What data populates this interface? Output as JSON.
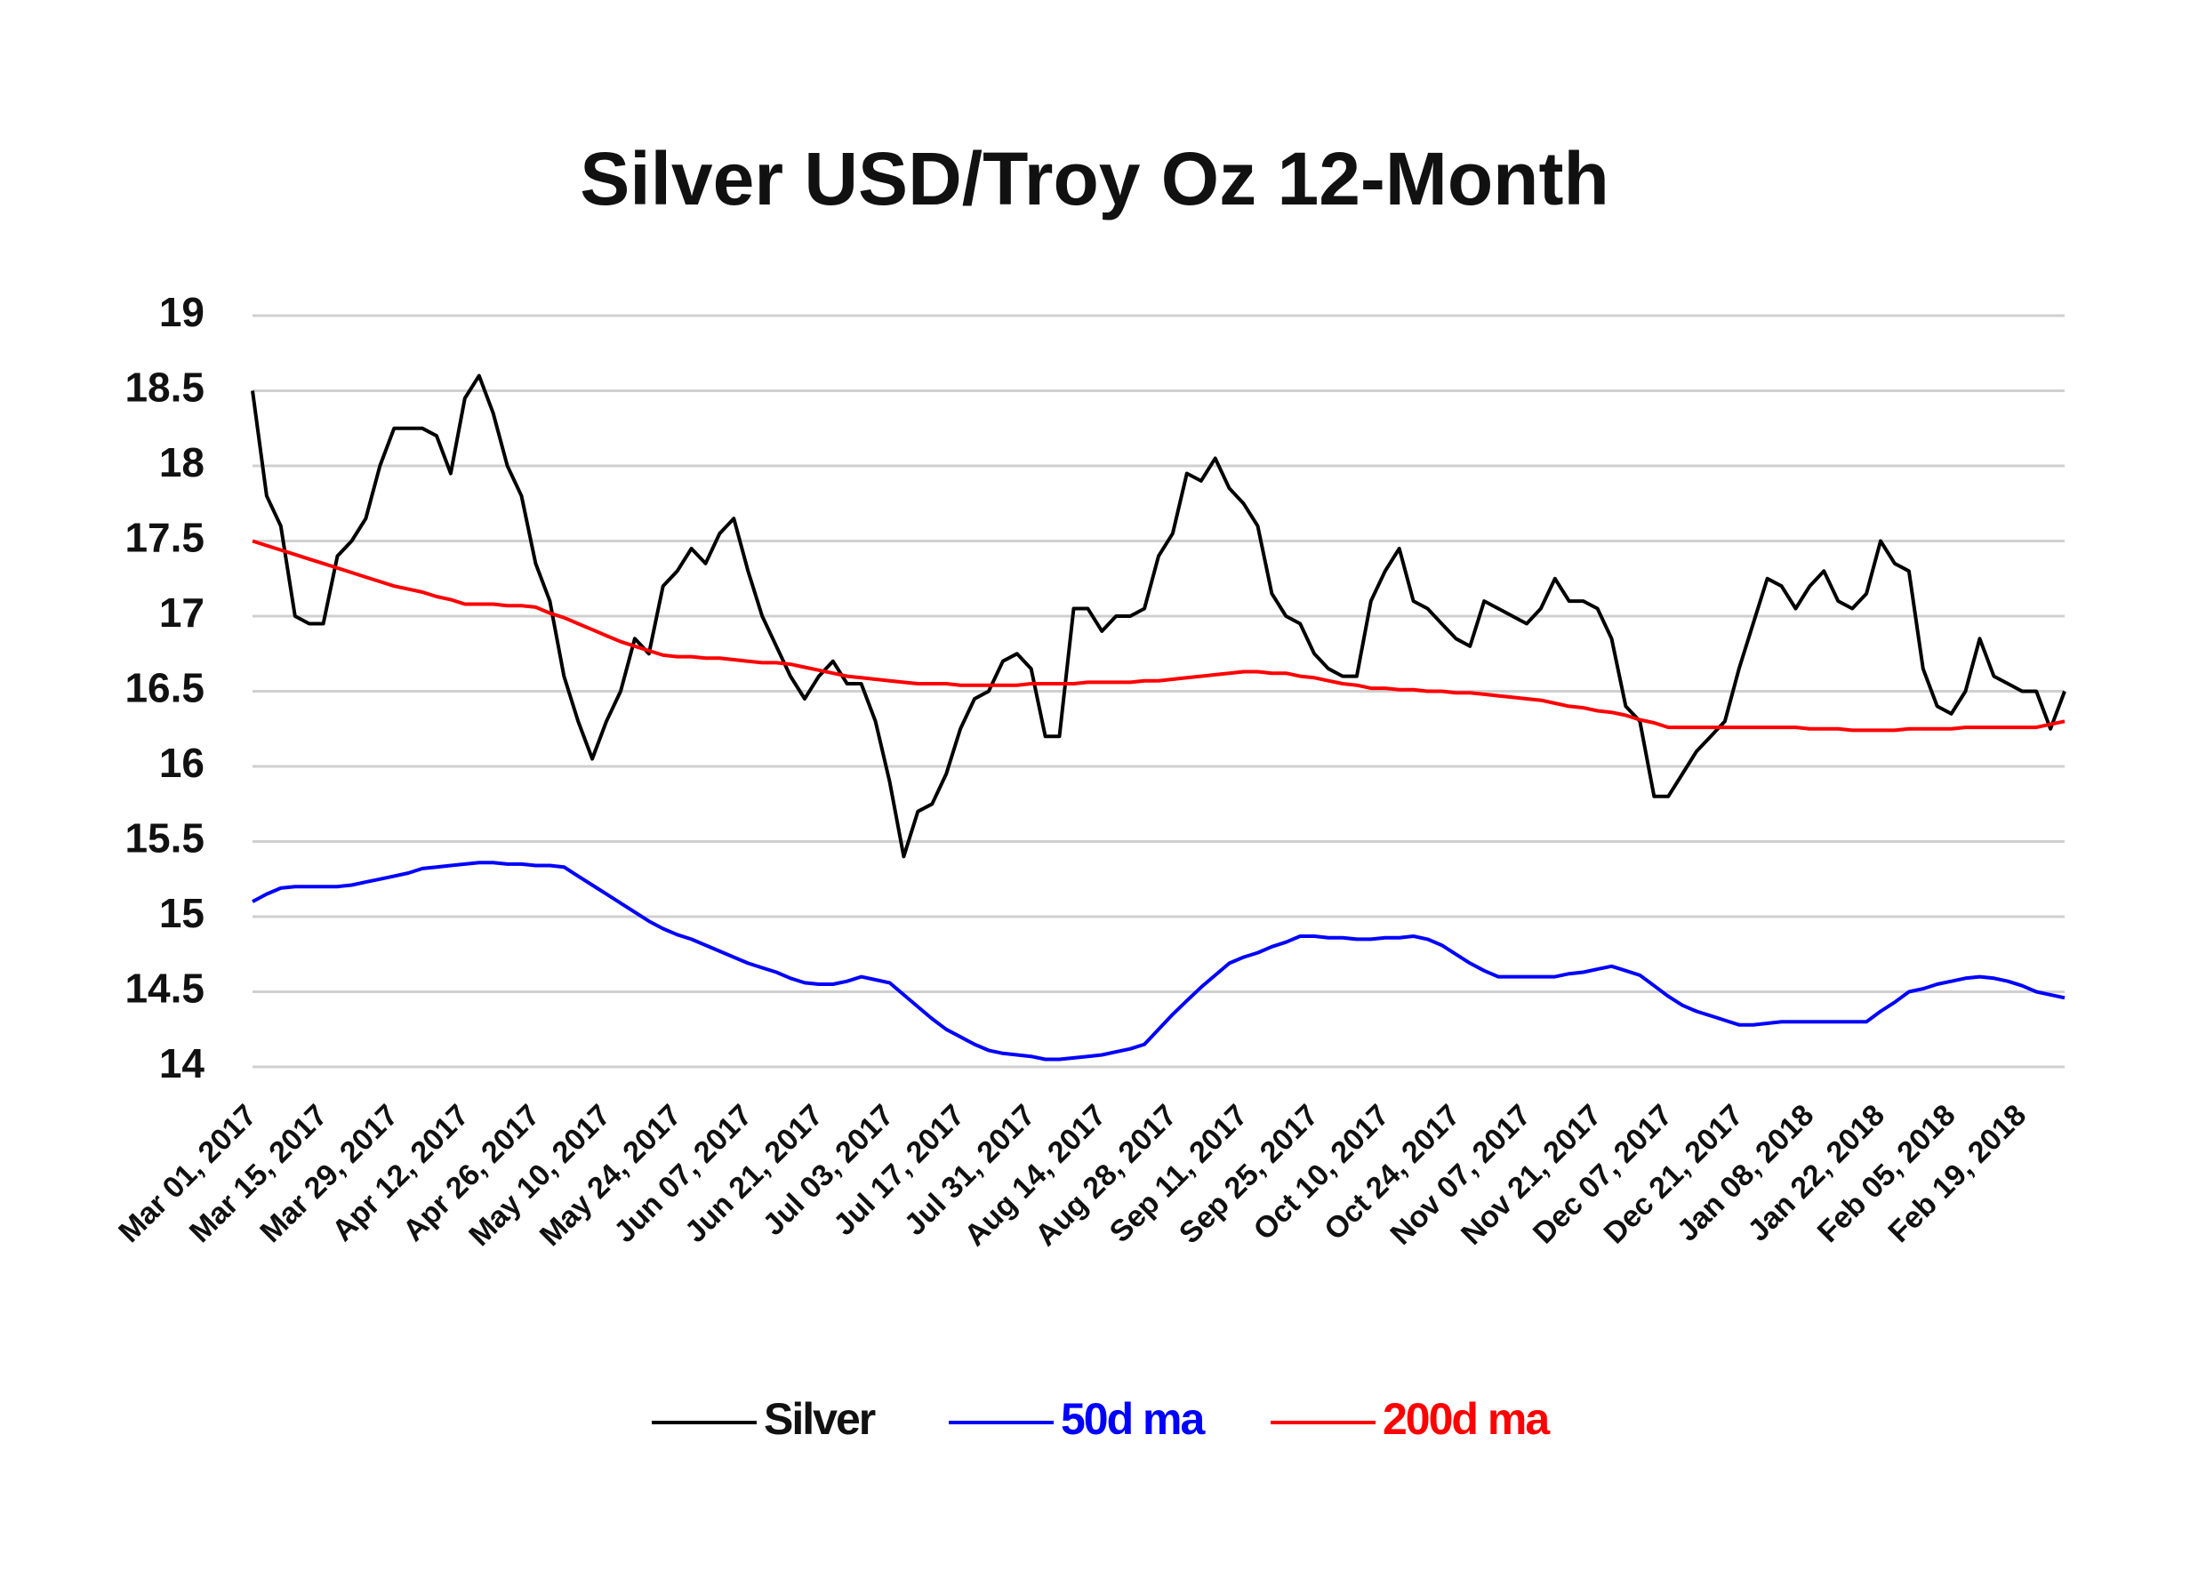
{
  "chart_data": {
    "type": "line",
    "title": "Silver USD/Troy Oz 12-Month",
    "categories": [
      "Mar 01, 2017",
      null,
      null,
      null,
      null,
      "Mar 15, 2017",
      null,
      null,
      null,
      null,
      "Mar 29, 2017",
      null,
      null,
      null,
      null,
      "Apr 12, 2017",
      null,
      null,
      null,
      null,
      "Apr 26, 2017",
      null,
      null,
      null,
      null,
      "May 10, 2017",
      null,
      null,
      null,
      null,
      "May 24, 2017",
      null,
      null,
      null,
      null,
      "Jun 07, 2017",
      null,
      null,
      null,
      null,
      "Jun 21, 2017",
      null,
      null,
      null,
      null,
      "Jul 03, 2017",
      null,
      null,
      null,
      null,
      "Jul 17, 2017",
      null,
      null,
      null,
      null,
      "Jul 31, 2017",
      null,
      null,
      null,
      null,
      "Aug 14, 2017",
      null,
      null,
      null,
      null,
      "Aug 28, 2017",
      null,
      null,
      null,
      null,
      "Sep 11, 2017",
      null,
      null,
      null,
      null,
      "Sep 25, 2017",
      null,
      null,
      null,
      null,
      "Oct 10, 2017",
      null,
      null,
      null,
      null,
      "Oct 24, 2017",
      null,
      null,
      null,
      null,
      "Nov 07, 2017",
      null,
      null,
      null,
      null,
      "Nov 21, 2017",
      null,
      null,
      null,
      null,
      "Dec 07, 2017",
      null,
      null,
      null,
      null,
      "Dec 21, 2017",
      null,
      null,
      null,
      null,
      "Jan 08, 2018",
      null,
      null,
      null,
      null,
      "Jan 22, 2018",
      null,
      null,
      null,
      null,
      "Feb 05, 2018",
      null,
      null,
      null,
      null,
      "Feb 19, 2018",
      null,
      null,
      null
    ],
    "series": [
      {
        "name": "Silver",
        "color": "#000000",
        "values": [
          18.5,
          17.8,
          17.6,
          17.0,
          16.95,
          16.95,
          17.4,
          17.5,
          17.65,
          18.0,
          18.25,
          18.25,
          18.25,
          18.2,
          17.95,
          18.45,
          18.6,
          18.35,
          18.0,
          17.8,
          17.35,
          17.1,
          16.6,
          16.3,
          16.05,
          16.3,
          16.5,
          16.85,
          16.75,
          17.2,
          17.3,
          17.45,
          17.35,
          17.55,
          17.65,
          17.3,
          17.0,
          16.8,
          16.6,
          16.45,
          16.6,
          16.7,
          16.55,
          16.55,
          16.3,
          15.9,
          15.4,
          15.7,
          15.75,
          15.95,
          16.25,
          16.45,
          16.5,
          16.7,
          16.75,
          16.65,
          16.2,
          16.2,
          17.05,
          17.05,
          16.9,
          17.0,
          17.0,
          17.05,
          17.4,
          17.55,
          17.95,
          17.9,
          18.05,
          17.85,
          17.75,
          17.6,
          17.15,
          17.0,
          16.95,
          16.75,
          16.65,
          16.6,
          16.6,
          17.1,
          17.3,
          17.45,
          17.1,
          17.05,
          16.95,
          16.85,
          16.8,
          17.1,
          17.05,
          17.0,
          16.95,
          17.05,
          17.25,
          17.1,
          17.1,
          17.05,
          16.85,
          16.4,
          16.3,
          15.8,
          15.8,
          15.95,
          16.1,
          16.2,
          16.3,
          16.65,
          16.95,
          17.25,
          17.2,
          17.05,
          17.2,
          17.3,
          17.1,
          17.05,
          17.15,
          17.5,
          17.35,
          17.3,
          16.65,
          16.4,
          16.35,
          16.5,
          16.85,
          16.6,
          16.55,
          16.5,
          16.5,
          16.25,
          16.5
        ]
      },
      {
        "name": "50d ma",
        "color": "#0000ff",
        "values": [
          15.1,
          15.15,
          15.19,
          15.2,
          15.2,
          15.2,
          15.2,
          15.21,
          15.23,
          15.25,
          15.27,
          15.29,
          15.32,
          15.33,
          15.34,
          15.35,
          15.36,
          15.36,
          15.35,
          15.35,
          15.34,
          15.34,
          15.33,
          15.27,
          15.21,
          15.15,
          15.09,
          15.03,
          14.97,
          14.92,
          14.88,
          14.85,
          14.81,
          14.77,
          14.73,
          14.69,
          14.66,
          14.63,
          14.59,
          14.56,
          14.55,
          14.55,
          14.57,
          14.6,
          14.58,
          14.56,
          14.48,
          14.4,
          14.32,
          14.25,
          14.2,
          14.15,
          14.11,
          14.09,
          14.08,
          14.07,
          14.05,
          14.05,
          14.06,
          14.07,
          14.08,
          14.1,
          14.12,
          14.15,
          14.25,
          14.35,
          14.44,
          14.53,
          14.61,
          14.69,
          14.73,
          14.76,
          14.8,
          14.83,
          14.87,
          14.87,
          14.86,
          14.86,
          14.85,
          14.85,
          14.86,
          14.86,
          14.87,
          14.85,
          14.81,
          14.75,
          14.69,
          14.64,
          14.6,
          14.6,
          14.6,
          14.6,
          14.6,
          14.62,
          14.63,
          14.65,
          14.67,
          14.64,
          14.61,
          14.54,
          14.47,
          14.41,
          14.37,
          14.34,
          14.31,
          14.28,
          14.28,
          14.29,
          14.3,
          14.3,
          14.3,
          14.3,
          14.3,
          14.3,
          14.3,
          14.37,
          14.43,
          14.5,
          14.52,
          14.55,
          14.57,
          14.59,
          14.6,
          14.59,
          14.57,
          14.54,
          14.5,
          14.48,
          14.46
        ]
      },
      {
        "name": "200d ma",
        "color": "#ff0000",
        "values": [
          17.5,
          17.47,
          17.44,
          17.41,
          17.38,
          17.35,
          17.32,
          17.29,
          17.26,
          17.23,
          17.2,
          17.18,
          17.16,
          17.13,
          17.11,
          17.08,
          17.08,
          17.08,
          17.07,
          17.07,
          17.06,
          17.02,
          16.99,
          16.95,
          16.91,
          16.87,
          16.83,
          16.8,
          16.77,
          16.74,
          16.73,
          16.73,
          16.72,
          16.72,
          16.71,
          16.7,
          16.69,
          16.69,
          16.68,
          16.66,
          16.64,
          16.62,
          16.6,
          16.59,
          16.58,
          16.57,
          16.56,
          16.55,
          16.55,
          16.55,
          16.54,
          16.54,
          16.54,
          16.54,
          16.54,
          16.55,
          16.55,
          16.55,
          16.55,
          16.56,
          16.56,
          16.56,
          16.56,
          16.57,
          16.57,
          16.58,
          16.59,
          16.6,
          16.61,
          16.62,
          16.63,
          16.63,
          16.62,
          16.62,
          16.6,
          16.59,
          16.57,
          16.55,
          16.54,
          16.52,
          16.52,
          16.51,
          16.51,
          16.5,
          16.5,
          16.49,
          16.49,
          16.48,
          16.47,
          16.46,
          16.45,
          16.44,
          16.42,
          16.4,
          16.39,
          16.37,
          16.36,
          16.34,
          16.31,
          16.29,
          16.26,
          16.26,
          16.26,
          16.26,
          16.26,
          16.26,
          16.26,
          16.26,
          16.26,
          16.26,
          16.25,
          16.25,
          16.25,
          16.24,
          16.24,
          16.24,
          16.24,
          16.25,
          16.25,
          16.25,
          16.25,
          16.26,
          16.26,
          16.26,
          16.26,
          16.26,
          16.26,
          16.28,
          16.3
        ]
      }
    ],
    "ylim": [
      14,
      19
    ],
    "yticks": [
      14,
      {
        "value": 14.5,
        "label": "14.5"
      },
      15,
      {
        "value": 15.5,
        "label": "15.5"
      },
      16,
      {
        "value": 16.5,
        "label": "16.5"
      },
      17,
      {
        "value": 17.5,
        "label": "17.5"
      },
      18,
      {
        "value": 18.5,
        "label": "18.5"
      },
      19
    ],
    "grid": true,
    "legend": "bottom"
  }
}
